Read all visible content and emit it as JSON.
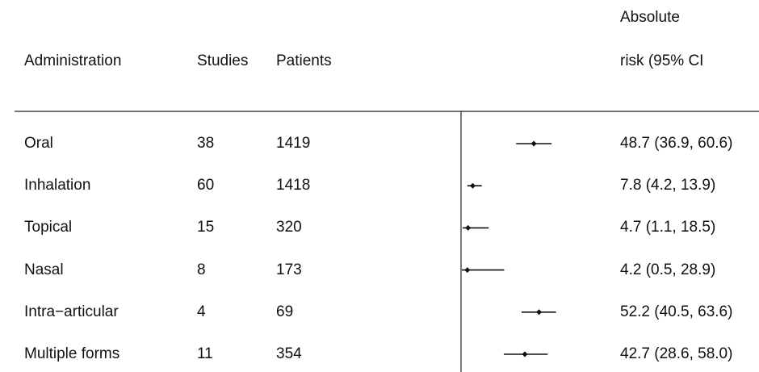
{
  "chart_data": {
    "type": "forest",
    "columns": {
      "administration": "Administration",
      "studies": "Studies",
      "patients": "Patients",
      "risk_line1": "Absolute",
      "risk_line2": "risk (95% CI"
    },
    "rows": [
      {
        "label": "Oral",
        "studies": "38",
        "patients": "1419",
        "estimate": 48.7,
        "lower": 36.9,
        "upper": 60.6,
        "ci_text": "48.7 (36.9, 60.6)"
      },
      {
        "label": "Inhalation",
        "studies": "60",
        "patients": "1418",
        "estimate": 7.8,
        "lower": 4.2,
        "upper": 13.9,
        "ci_text": "7.8 (4.2, 13.9)"
      },
      {
        "label": "Topical",
        "studies": "15",
        "patients": "320",
        "estimate": 4.7,
        "lower": 1.1,
        "upper": 18.5,
        "ci_text": "4.7 (1.1, 18.5)"
      },
      {
        "label": "Nasal",
        "studies": "8",
        "patients": "173",
        "estimate": 4.2,
        "lower": 0.5,
        "upper": 28.9,
        "ci_text": "4.2 (0.5, 28.9)"
      },
      {
        "label": "Intra−articular",
        "studies": "4",
        "patients": "69",
        "estimate": 52.2,
        "lower": 40.5,
        "upper": 63.6,
        "ci_text": "52.2 (40.5, 63.6)"
      },
      {
        "label": "Multiple forms",
        "studies": "11",
        "patients": "354",
        "estimate": 42.7,
        "lower": 28.6,
        "upper": 58.0,
        "ci_text": "42.7 (28.6, 58.0)"
      }
    ],
    "x_range": [
      0,
      100
    ],
    "reference_line": 0
  }
}
